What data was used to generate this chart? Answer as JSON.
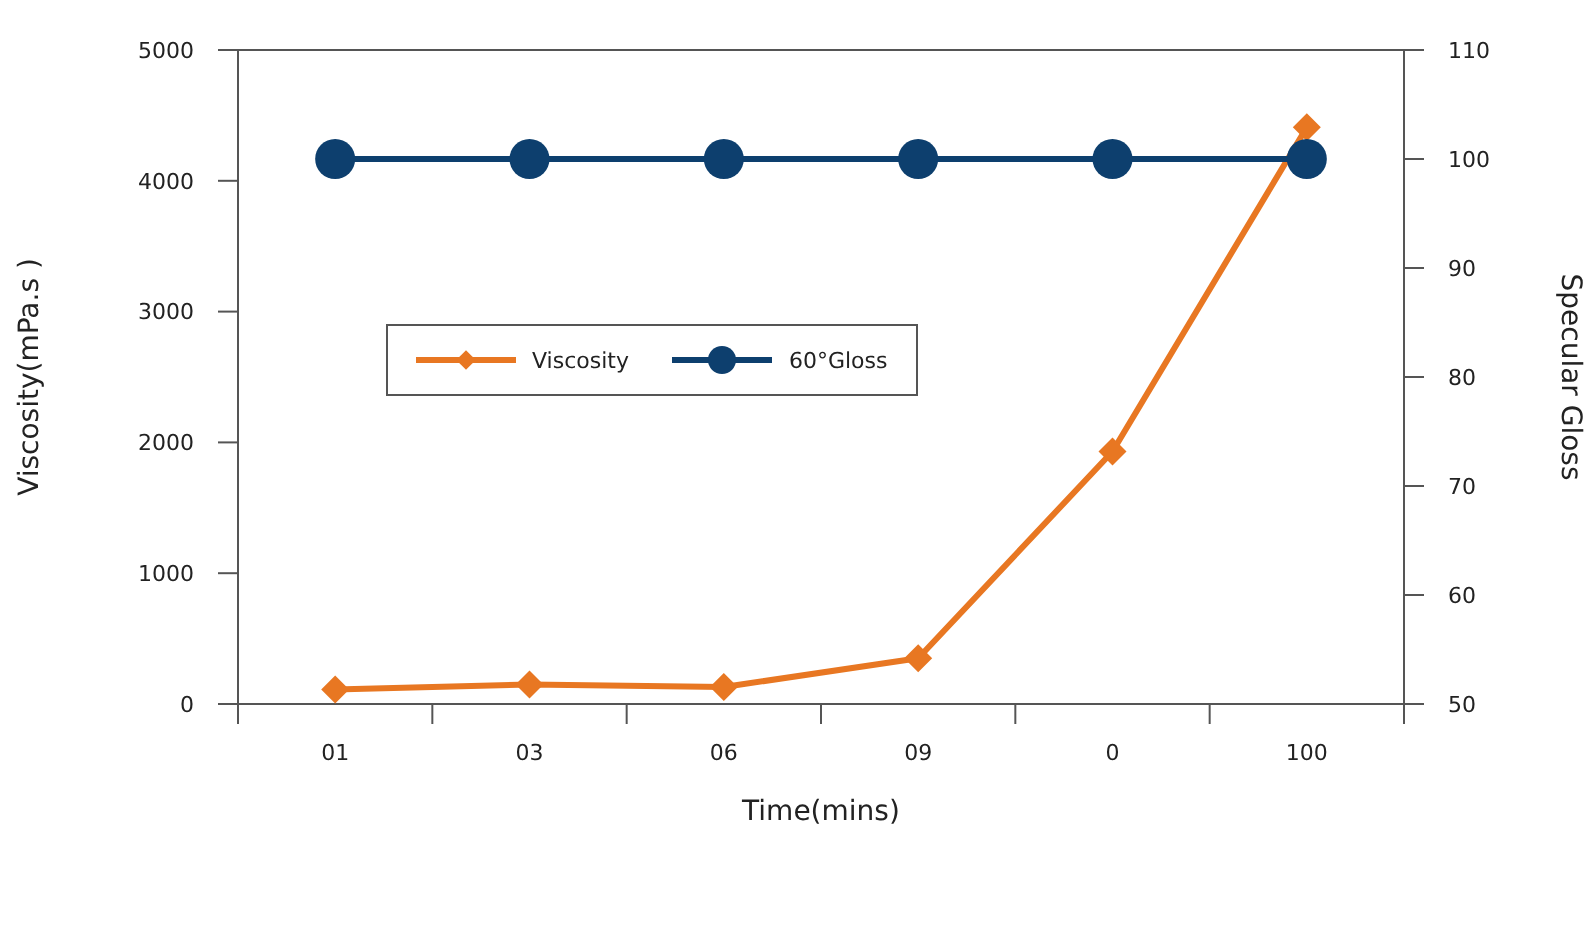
{
  "chart_data": {
    "type": "line",
    "xlabel": "Time(mins)",
    "ylabel": "Viscosity(mPa.s )",
    "y2label": "Specular Gloss",
    "categories": [
      "01",
      "03",
      "06",
      "09",
      "0",
      "100"
    ],
    "series": [
      {
        "name": "Viscosity",
        "color": "#e87722",
        "marker": "diamond",
        "values": [
          110,
          150,
          130,
          350,
          1930,
          4410
        ]
      },
      {
        "name": "60°Gloss",
        "color": "#0d3f6e",
        "marker": "circle",
        "axis": "y2",
        "values": [
          100,
          100,
          100,
          100,
          100,
          100
        ]
      }
    ],
    "ylim": [
      0,
      5000
    ],
    "yticks": [
      0,
      1000,
      2000,
      3000,
      4000,
      5000
    ],
    "y2lim": [
      50,
      110
    ],
    "y2ticks": [
      50,
      60,
      70,
      80,
      90,
      100,
      110
    ],
    "grid": false,
    "legend": "left",
    "line_style": "solid"
  }
}
